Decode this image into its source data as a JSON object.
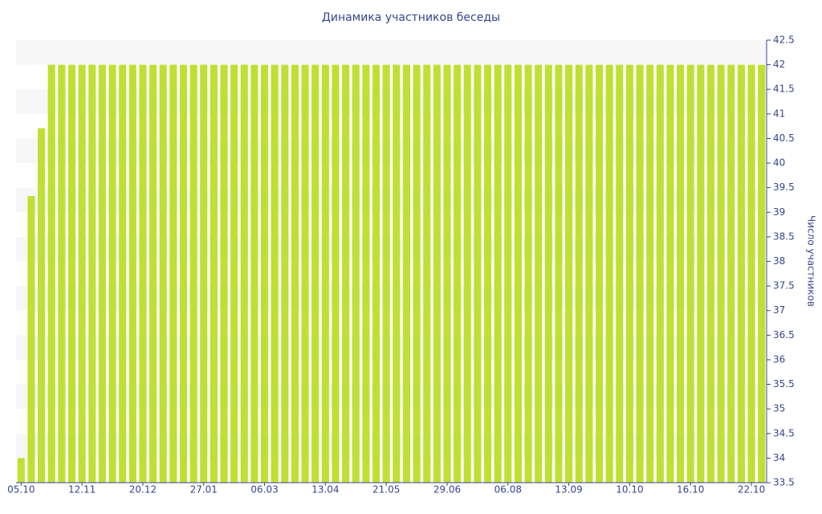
{
  "chart_data": {
    "type": "bar",
    "title": "Динамика участников беседы",
    "y_label": "Число участников",
    "categories": [
      "05.10",
      null,
      null,
      null,
      null,
      null,
      "12.11",
      null,
      null,
      null,
      null,
      null,
      "20.12",
      null,
      null,
      null,
      null,
      null,
      "27.01",
      null,
      null,
      null,
      null,
      null,
      "06.03",
      null,
      null,
      null,
      null,
      null,
      "13.04",
      null,
      null,
      null,
      null,
      null,
      "21.05",
      null,
      null,
      null,
      null,
      null,
      "29.06",
      null,
      null,
      null,
      null,
      null,
      "06.08",
      null,
      null,
      null,
      null,
      null,
      "13.09",
      null,
      null,
      null,
      null,
      null,
      "10.10",
      null,
      null,
      null,
      null,
      null,
      "16.10",
      null,
      null,
      null,
      null,
      null,
      "22.10",
      null
    ],
    "values": [
      34,
      39.33,
      40.71,
      42,
      42,
      42,
      42,
      42,
      42,
      42,
      42,
      42,
      42,
      42,
      42,
      42,
      42,
      42,
      42,
      42,
      42,
      42,
      42,
      42,
      42,
      42,
      42,
      42,
      42,
      42,
      42,
      42,
      42,
      42,
      42,
      42,
      42,
      42,
      42,
      42,
      42,
      42,
      42,
      42,
      42,
      42,
      42,
      42,
      42,
      42,
      42,
      42,
      42,
      42,
      42,
      42,
      42,
      42,
      42,
      42,
      42,
      42,
      42,
      42,
      42,
      42,
      42,
      42,
      42,
      42,
      42,
      42,
      42,
      42
    ],
    "color": "#c0df34",
    "ylim": [
      33.5,
      42.5
    ],
    "yticks": [
      33.5,
      34,
      34.5,
      35,
      35.5,
      36,
      36.5,
      37,
      37.5,
      38,
      38.5,
      39,
      39.5,
      40,
      40.5,
      41,
      41.5,
      42,
      42.5
    ],
    "y_axis_side": "right",
    "grid": "bands"
  }
}
